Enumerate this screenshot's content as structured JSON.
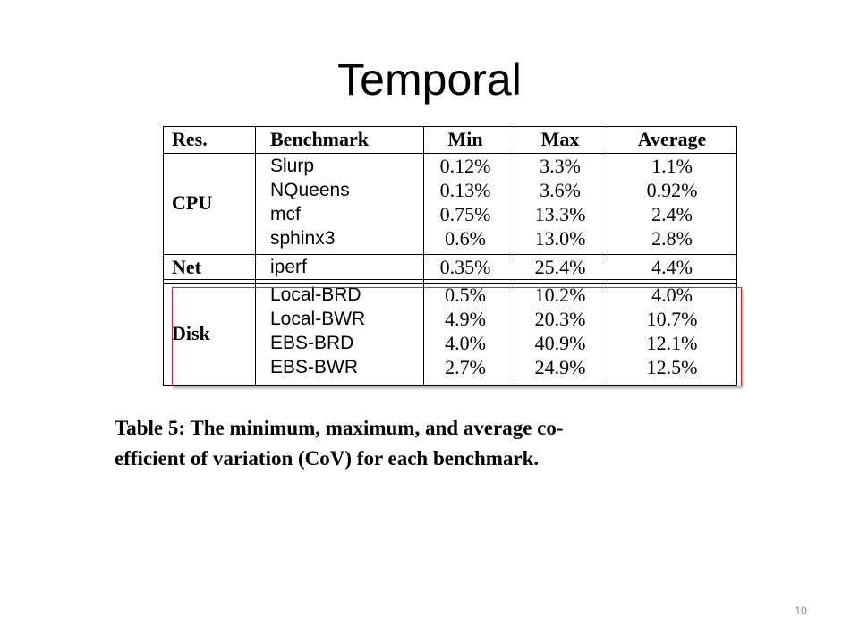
{
  "slide": {
    "title": "Temporal",
    "page_number": "10"
  },
  "table": {
    "headers": [
      "Res.",
      "Benchmark",
      "Min",
      "Max",
      "Average"
    ],
    "groups": [
      {
        "resource": "CPU",
        "rows": [
          {
            "benchmark": "Slurp",
            "min": "0.12%",
            "max": "3.3%",
            "average": "1.1%"
          },
          {
            "benchmark": "NQueens",
            "min": "0.13%",
            "max": "3.6%",
            "average": "0.92%"
          },
          {
            "benchmark": "mcf",
            "min": "0.75%",
            "max": "13.3%",
            "average": "2.4%"
          },
          {
            "benchmark": "sphinx3",
            "min": "0.6%",
            "max": "13.0%",
            "average": "2.8%"
          }
        ]
      },
      {
        "resource": "Net",
        "rows": [
          {
            "benchmark": "iperf",
            "min": "0.35%",
            "max": "25.4%",
            "average": "4.4%"
          }
        ]
      },
      {
        "resource": "Disk",
        "rows": [
          {
            "benchmark": "Local-BRD",
            "min": "0.5%",
            "max": "10.2%",
            "average": "4.0%"
          },
          {
            "benchmark": "Local-BWR",
            "min": "4.9%",
            "max": "20.3%",
            "average": "10.7%"
          },
          {
            "benchmark": "EBS-BRD",
            "min": "4.0%",
            "max": "40.9%",
            "average": "12.1%"
          },
          {
            "benchmark": "EBS-BWR",
            "min": "2.7%",
            "max": "24.9%",
            "average": "12.5%"
          }
        ]
      }
    ],
    "highlight_color": "#e0202a"
  },
  "caption": {
    "line1": "Table 5: The minimum, maximum, and average co-",
    "line2": "efficient of variation (CoV) for each benchmark."
  }
}
